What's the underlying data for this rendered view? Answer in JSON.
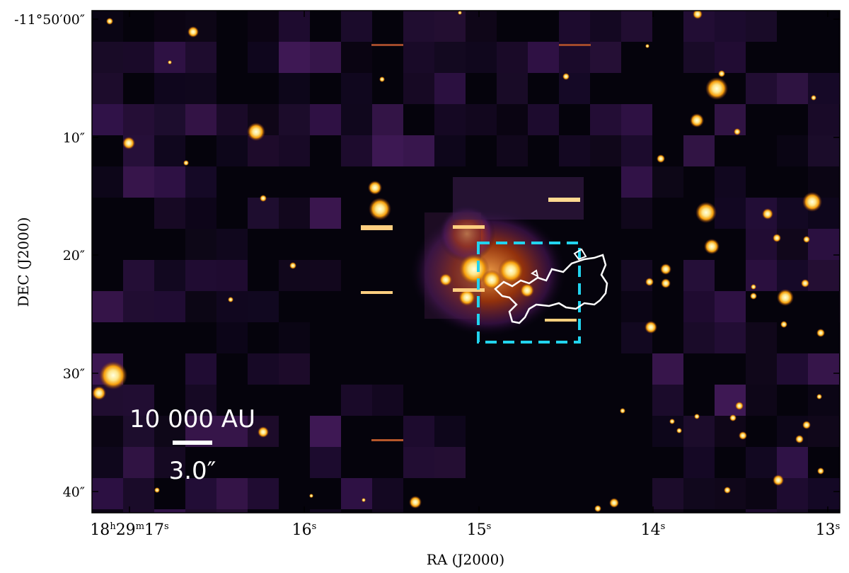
{
  "axes": {
    "xlabel": "RA (J2000)",
    "ylabel": "DEC (J2000)",
    "x_ticks": [
      {
        "base": "18",
        "h": "h",
        "m_val": "29",
        "m": "m",
        "s_val": "17",
        "s": "s"
      },
      {
        "base": "16",
        "s": "s"
      },
      {
        "base": "15",
        "s": "s"
      },
      {
        "base": "14",
        "s": "s"
      },
      {
        "base": "13",
        "s": "s"
      }
    ],
    "y_ticks": [
      "-11°50′00″",
      "10″",
      "20″",
      "30″",
      "40″"
    ]
  },
  "scalebar": {
    "distance_label": "10 000 AU",
    "angle_label": "3.0″"
  },
  "overlays": {
    "box_color": "#22d3ee",
    "contour_color": "#ffffff"
  },
  "colormap": "inferno"
}
